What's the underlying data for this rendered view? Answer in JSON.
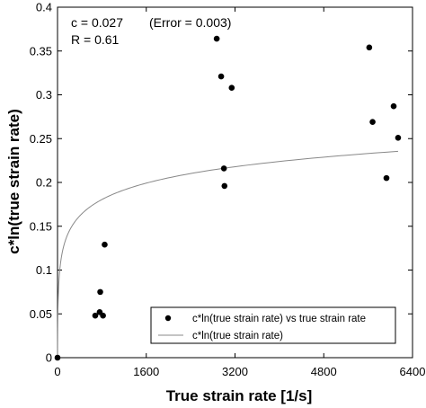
{
  "chart_data": {
    "type": "scatter",
    "title": "",
    "xlabel": "True strain rate [1/s]",
    "ylabel": "c*ln(true strain rate)",
    "xlim": [
      0,
      6400
    ],
    "ylim": [
      0,
      0.4
    ],
    "x_ticks": [
      0,
      1600,
      3200,
      4800,
      6400
    ],
    "x_tick_labels": [
      "0",
      "1600",
      "3200",
      "4800",
      "6400"
    ],
    "y_ticks": [
      0,
      0.05,
      0.1,
      0.15,
      0.2,
      0.25,
      0.3,
      0.35,
      0.4
    ],
    "y_tick_labels": [
      "0",
      "0.05",
      "0.1",
      "0.15",
      "0.2",
      "0.25",
      "0.3",
      "0.35",
      "0.4"
    ],
    "grid": false,
    "legend_position": "bottom-right",
    "annotations": {
      "line1_c": "c = 0.027",
      "line1_error": "(Error = 0.003)",
      "line2": "R = 0.61"
    },
    "fit_coefficient": 0.027,
    "series": [
      {
        "name": "c*ln(true strain rate) vs true strain rate",
        "kind": "scatter",
        "color": "#000000",
        "points": [
          [
            0,
            0
          ],
          [
            680,
            0.048
          ],
          [
            760,
            0.052
          ],
          [
            770,
            0.075
          ],
          [
            820,
            0.048
          ],
          [
            850,
            0.129
          ],
          [
            2870,
            0.364
          ],
          [
            2950,
            0.321
          ],
          [
            3000,
            0.216
          ],
          [
            3010,
            0.196
          ],
          [
            3140,
            0.308
          ],
          [
            5620,
            0.354
          ],
          [
            5680,
            0.269
          ],
          [
            5930,
            0.205
          ],
          [
            6060,
            0.287
          ],
          [
            6140,
            0.251
          ]
        ]
      },
      {
        "name": "c*ln(true strain rate)",
        "kind": "line",
        "color": "#888888",
        "x_range": [
          1,
          6140
        ]
      }
    ]
  }
}
